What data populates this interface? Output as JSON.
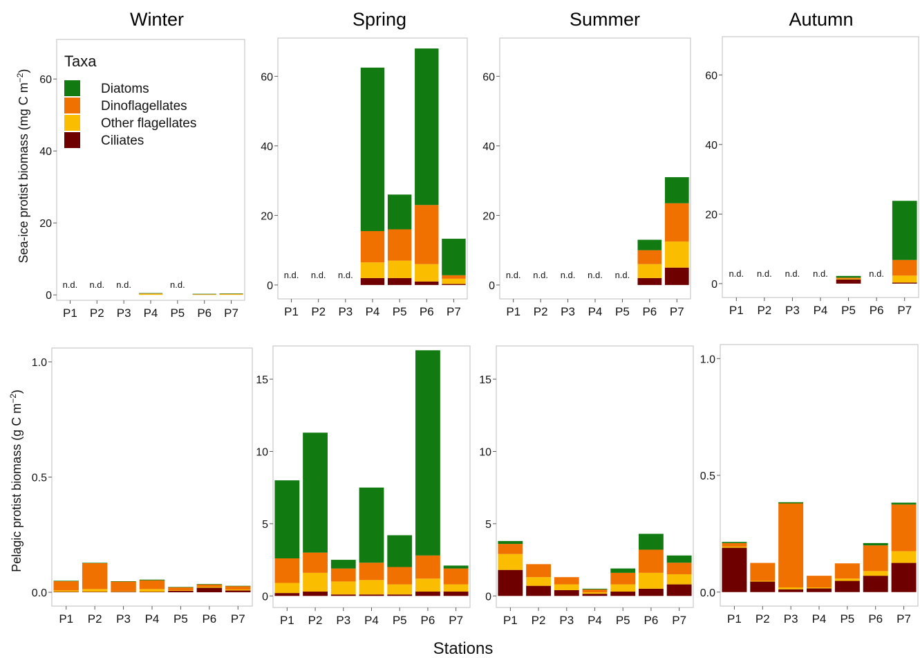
{
  "x_axis_label": "Stations",
  "legend": {
    "title": "Taxa",
    "entries": [
      {
        "name": "Diatoms",
        "color": "#117a11"
      },
      {
        "name": "Dinoflagellates",
        "color": "#f07100"
      },
      {
        "name": "Other flagellates",
        "color": "#fbbd00"
      },
      {
        "name": "Ciliates",
        "color": "#6e0000"
      }
    ]
  },
  "rows": [
    {
      "ylabel_main": "Sea-ice protist biomass  (mg C m",
      "ylabel_sup": "−2",
      "ylabel_end": ")"
    },
    {
      "ylabel_main": "Pelagic protist biomass  (g C m",
      "ylabel_sup": "−2",
      "ylabel_end": ")"
    }
  ],
  "chart_data": [
    {
      "type": "bar",
      "stacked": true,
      "title": "Winter",
      "xlabel": "",
      "ylabel": "Sea-ice protist biomass (mg C m−2)",
      "categories": [
        "P1",
        "P2",
        "P3",
        "P4",
        "P5",
        "P6",
        "P7"
      ],
      "ylim": [
        -1.5,
        71
      ],
      "yticks": [
        0,
        20,
        40,
        60
      ],
      "nd_label": "n.d.",
      "not_determined": [
        "P1",
        "P2",
        "P3",
        "P5"
      ],
      "series": [
        {
          "name": "Ciliates",
          "values": [
            0,
            0,
            0,
            0,
            0,
            0,
            0
          ]
        },
        {
          "name": "Other flagellates",
          "values": [
            0,
            0,
            0,
            0.3,
            0,
            0.1,
            0.2
          ]
        },
        {
          "name": "Dinoflagellates",
          "values": [
            0,
            0,
            0,
            0.1,
            0,
            0.1,
            0.1
          ]
        },
        {
          "name": "Diatoms",
          "values": [
            0,
            0,
            0,
            0.1,
            0,
            0.1,
            0.1
          ]
        }
      ]
    },
    {
      "type": "bar",
      "stacked": true,
      "title": "Spring",
      "xlabel": "",
      "ylabel": "",
      "categories": [
        "P1",
        "P2",
        "P3",
        "P4",
        "P5",
        "P6",
        "P7"
      ],
      "ylim": [
        -4,
        71
      ],
      "yticks": [
        0,
        20,
        40,
        60
      ],
      "nd_label": "n.d.",
      "not_determined": [
        "P1",
        "P2",
        "P3"
      ],
      "series": [
        {
          "name": "Ciliates",
          "values": [
            0,
            0,
            0,
            2,
            2,
            1,
            0.3
          ]
        },
        {
          "name": "Other flagellates",
          "values": [
            0,
            0,
            0,
            4.5,
            5,
            5,
            1.5
          ]
        },
        {
          "name": "Dinoflagellates",
          "values": [
            0,
            0,
            0,
            9,
            9,
            17,
            1
          ]
        },
        {
          "name": "Diatoms",
          "values": [
            0,
            0,
            0,
            47,
            10,
            45,
            10.5
          ]
        }
      ]
    },
    {
      "type": "bar",
      "stacked": true,
      "title": "Summer",
      "xlabel": "",
      "ylabel": "",
      "categories": [
        "P1",
        "P2",
        "P3",
        "P4",
        "P5",
        "P6",
        "P7"
      ],
      "ylim": [
        -4,
        71
      ],
      "yticks": [
        0,
        20,
        40,
        60
      ],
      "nd_label": "n.d.",
      "not_determined": [
        "P1",
        "P2",
        "P3",
        "P4",
        "P5"
      ],
      "series": [
        {
          "name": "Ciliates",
          "values": [
            0,
            0,
            0,
            0,
            0,
            2,
            5
          ]
        },
        {
          "name": "Other flagellates",
          "values": [
            0,
            0,
            0,
            0,
            0,
            4,
            7.5
          ]
        },
        {
          "name": "Dinoflagellates",
          "values": [
            0,
            0,
            0,
            0,
            0,
            4,
            11
          ]
        },
        {
          "name": "Diatoms",
          "values": [
            0,
            0,
            0,
            0,
            0,
            3,
            7.5
          ]
        }
      ]
    },
    {
      "type": "bar",
      "stacked": true,
      "title": "Autumn",
      "xlabel": "",
      "ylabel": "",
      "categories": [
        "P1",
        "P2",
        "P3",
        "P4",
        "P5",
        "P6",
        "P7"
      ],
      "ylim": [
        -4,
        71
      ],
      "yticks": [
        0,
        20,
        40,
        60
      ],
      "nd_label": "n.d.",
      "not_determined": [
        "P1",
        "P2",
        "P3",
        "P4",
        "P6"
      ],
      "series": [
        {
          "name": "Ciliates",
          "values": [
            0,
            0,
            0,
            0,
            1.2,
            0,
            0.3
          ]
        },
        {
          "name": "Other flagellates",
          "values": [
            0,
            0,
            0,
            0,
            0.2,
            0,
            2
          ]
        },
        {
          "name": "Dinoflagellates",
          "values": [
            0,
            0,
            0,
            0,
            0.3,
            0,
            4.5
          ]
        },
        {
          "name": "Diatoms",
          "values": [
            0,
            0,
            0,
            0,
            0.5,
            0,
            17
          ]
        }
      ]
    },
    {
      "type": "bar",
      "stacked": true,
      "title": "",
      "xlabel": "",
      "ylabel": "Pelagic protist biomass (g C m−2)",
      "categories": [
        "P1",
        "P2",
        "P3",
        "P4",
        "P5",
        "P6",
        "P7"
      ],
      "ylim": [
        -0.06,
        1.06
      ],
      "yticks": [
        0.0,
        0.5,
        1.0
      ],
      "series": [
        {
          "name": "Ciliates",
          "values": [
            0.002,
            0.002,
            0.002,
            0.002,
            0.006,
            0.02,
            0.008
          ]
        },
        {
          "name": "Other flagellates",
          "values": [
            0.006,
            0.012,
            0.002,
            0.012,
            0.002,
            0.004,
            0.004
          ]
        },
        {
          "name": "Dinoflagellates",
          "values": [
            0.04,
            0.113,
            0.043,
            0.038,
            0.014,
            0.01,
            0.015
          ]
        },
        {
          "name": "Diatoms",
          "values": [
            0.002,
            0.001,
            0.001,
            0.003,
            0.001,
            0.002,
            0.001
          ]
        }
      ]
    },
    {
      "type": "bar",
      "stacked": true,
      "title": "",
      "xlabel": "",
      "ylabel": "",
      "categories": [
        "P1",
        "P2",
        "P3",
        "P4",
        "P5",
        "P6",
        "P7"
      ],
      "ylim": [
        -0.8,
        17.3
      ],
      "yticks": [
        0,
        5,
        10,
        15
      ],
      "series": [
        {
          "name": "Ciliates",
          "values": [
            0.2,
            0.3,
            0.1,
            0.1,
            0.1,
            0.3,
            0.3
          ]
        },
        {
          "name": "Other flagellates",
          "values": [
            0.7,
            1.3,
            0.9,
            1,
            0.7,
            0.9,
            0.5
          ]
        },
        {
          "name": "Dinoflagellates",
          "values": [
            1.7,
            1.4,
            0.9,
            1.2,
            1.2,
            1.6,
            1.1
          ]
        },
        {
          "name": "Diatoms",
          "values": [
            5.4,
            8.3,
            0.6,
            5.2,
            2.2,
            14.2,
            0.2
          ]
        }
      ]
    },
    {
      "type": "bar",
      "stacked": true,
      "title": "",
      "xlabel": "",
      "ylabel": "",
      "categories": [
        "P1",
        "P2",
        "P3",
        "P4",
        "P5",
        "P6",
        "P7"
      ],
      "ylim": [
        -0.8,
        17.3
      ],
      "yticks": [
        0,
        5,
        10,
        15
      ],
      "series": [
        {
          "name": "Ciliates",
          "values": [
            1.8,
            0.7,
            0.4,
            0.15,
            0.3,
            0.5,
            0.8
          ]
        },
        {
          "name": "Other flagellates",
          "values": [
            1.1,
            0.6,
            0.4,
            0.1,
            0.5,
            1.1,
            0.7
          ]
        },
        {
          "name": "Dinoflagellates",
          "values": [
            0.7,
            0.9,
            0.5,
            0.2,
            0.8,
            1.6,
            0.8
          ]
        },
        {
          "name": "Diatoms",
          "values": [
            0.2,
            0,
            0,
            0.05,
            0.3,
            1.1,
            0.5
          ]
        }
      ]
    },
    {
      "type": "bar",
      "stacked": true,
      "title": "",
      "xlabel": "",
      "ylabel": "",
      "categories": [
        "P1",
        "P2",
        "P3",
        "P4",
        "P5",
        "P6",
        "P7"
      ],
      "ylim": [
        -0.06,
        1.06
      ],
      "yticks": [
        0.0,
        0.5,
        1.0
      ],
      "series": [
        {
          "name": "Ciliates",
          "values": [
            0.19,
            0.045,
            0.012,
            0.016,
            0.048,
            0.07,
            0.125
          ]
        },
        {
          "name": "Other flagellates",
          "values": [
            0.005,
            0.003,
            0.008,
            0.004,
            0.01,
            0.02,
            0.05
          ]
        },
        {
          "name": "Dinoflagellates",
          "values": [
            0.015,
            0.077,
            0.36,
            0.05,
            0.065,
            0.11,
            0.2
          ]
        },
        {
          "name": "Diatoms",
          "values": [
            0.005,
            0,
            0.005,
            0,
            0,
            0.01,
            0.008
          ]
        }
      ]
    }
  ]
}
